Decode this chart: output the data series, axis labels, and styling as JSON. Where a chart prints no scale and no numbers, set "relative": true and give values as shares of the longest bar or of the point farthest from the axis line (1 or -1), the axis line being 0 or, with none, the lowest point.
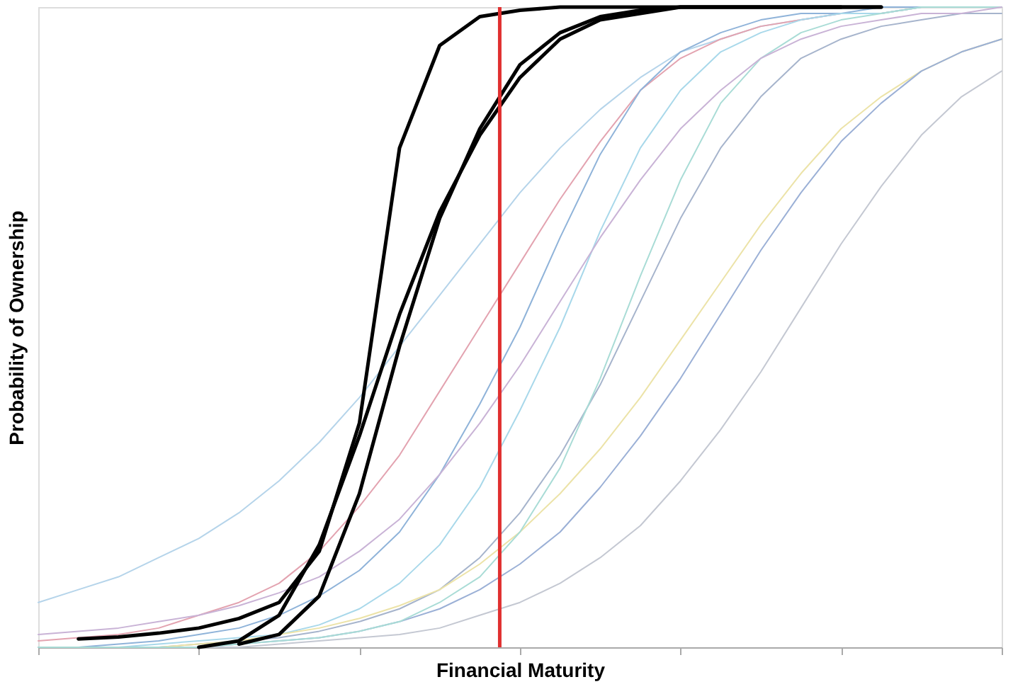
{
  "chart_data": {
    "type": "line",
    "relative": true,
    "xlabel": "Financial Maturity",
    "ylabel": "Probability of Ownership",
    "grid": false,
    "legend": false,
    "marker": "none",
    "line_style": "solid",
    "categories": [
      null,
      null,
      null,
      null,
      null,
      null,
      null,
      null,
      null,
      null,
      null,
      null,
      null,
      null,
      null,
      null,
      null,
      null,
      null,
      null,
      null,
      null,
      null,
      null,
      null
    ],
    "series": [
      {
        "color": "#b5d4ea",
        "values": [
          0.07,
          0.09,
          0.11,
          0.14,
          0.17,
          0.21,
          0.26,
          0.32,
          0.39,
          0.47,
          0.55,
          0.63,
          0.71,
          0.78,
          0.84,
          0.89,
          0.93,
          0.95,
          0.97,
          0.98,
          0.99,
          0.99,
          1.0,
          1.0,
          1.0
        ]
      },
      {
        "color": "#e3a3b0",
        "values": [
          0.01,
          0.015,
          0.02,
          0.03,
          0.05,
          0.07,
          0.1,
          0.15,
          0.22,
          0.3,
          0.4,
          0.5,
          0.6,
          0.7,
          0.79,
          0.87,
          0.92,
          0.95,
          0.97,
          0.98,
          0.99,
          0.99,
          1.0,
          1.0,
          1.0
        ]
      },
      {
        "color": "#8fb3d9",
        "values": [
          0,
          0,
          0.005,
          0.01,
          0.02,
          0.03,
          0.05,
          0.08,
          0.12,
          0.18,
          0.27,
          0.38,
          0.5,
          0.64,
          0.77,
          0.87,
          0.93,
          0.96,
          0.98,
          0.99,
          0.99,
          1.0,
          1.0,
          1.0,
          1.0
        ]
      },
      {
        "color": "#a8d8ea",
        "values": [
          0,
          0,
          0,
          0.005,
          0.01,
          0.015,
          0.02,
          0.035,
          0.06,
          0.1,
          0.16,
          0.25,
          0.37,
          0.5,
          0.65,
          0.78,
          0.87,
          0.93,
          0.96,
          0.98,
          0.99,
          0.99,
          1.0,
          1.0,
          1.0
        ]
      },
      {
        "color": "#a6b4cc",
        "values": [
          0,
          0,
          0,
          0,
          0.005,
          0.01,
          0.015,
          0.025,
          0.04,
          0.06,
          0.09,
          0.14,
          0.21,
          0.3,
          0.41,
          0.54,
          0.67,
          0.78,
          0.86,
          0.92,
          0.95,
          0.97,
          0.98,
          0.99,
          0.99
        ]
      },
      {
        "color": "#ece3a8",
        "values": [
          0,
          0,
          0,
          0,
          0.005,
          0.01,
          0.02,
          0.03,
          0.045,
          0.065,
          0.09,
          0.13,
          0.18,
          0.24,
          0.31,
          0.39,
          0.48,
          0.57,
          0.66,
          0.74,
          0.81,
          0.86,
          0.9,
          0.93,
          0.95
        ]
      },
      {
        "color": "#9bb0d6",
        "values": [
          0,
          0,
          0,
          0,
          0,
          0.005,
          0.01,
          0.015,
          0.025,
          0.04,
          0.06,
          0.09,
          0.13,
          0.18,
          0.25,
          0.33,
          0.42,
          0.52,
          0.62,
          0.71,
          0.79,
          0.85,
          0.9,
          0.93,
          0.95
        ]
      },
      {
        "color": "#c4c8d2",
        "values": [
          0,
          0,
          0,
          0,
          0,
          0,
          0.005,
          0.01,
          0.015,
          0.02,
          0.03,
          0.05,
          0.07,
          0.1,
          0.14,
          0.19,
          0.26,
          0.34,
          0.43,
          0.53,
          0.63,
          0.72,
          0.8,
          0.86,
          0.9
        ]
      },
      {
        "color": "#a9dcd6",
        "values": [
          0,
          0,
          0,
          0,
          0,
          0.005,
          0.01,
          0.015,
          0.025,
          0.04,
          0.07,
          0.11,
          0.18,
          0.28,
          0.42,
          0.58,
          0.73,
          0.85,
          0.92,
          0.96,
          0.98,
          0.99,
          1.0,
          1.0,
          1.0
        ]
      },
      {
        "color": "#c9b3d6",
        "values": [
          0.02,
          0.025,
          0.03,
          0.04,
          0.05,
          0.065,
          0.085,
          0.11,
          0.15,
          0.2,
          0.27,
          0.35,
          0.44,
          0.54,
          0.64,
          0.73,
          0.81,
          0.87,
          0.92,
          0.95,
          0.97,
          0.98,
          0.99,
          0.99,
          1.0
        ]
      },
      {
        "color": "#000000",
        "values": [
          null,
          0.013,
          0.016,
          0.022,
          0.03,
          0.045,
          0.07,
          0.15,
          0.35,
          0.78,
          0.94,
          0.985,
          0.995,
          1.0,
          1.0,
          1.0,
          1.0,
          1.0,
          1.0,
          1.0,
          1.0,
          1.0,
          null,
          null,
          null
        ]
      },
      {
        "color": "#000000",
        "values": [
          null,
          null,
          null,
          null,
          0,
          0.01,
          0.05,
          0.16,
          0.33,
          0.52,
          0.68,
          0.8,
          0.89,
          0.95,
          0.98,
          0.99,
          1.0,
          1.0,
          1.0,
          1.0,
          1.0,
          1.0,
          null,
          null,
          null
        ]
      },
      {
        "color": "#000000",
        "values": [
          null,
          null,
          null,
          null,
          null,
          0.005,
          0.02,
          0.08,
          0.24,
          0.47,
          0.67,
          0.81,
          0.91,
          0.96,
          0.985,
          0.995,
          1.0,
          1.0,
          1.0,
          1.0,
          1.0,
          null,
          null,
          null,
          null
        ]
      }
    ]
  }
}
